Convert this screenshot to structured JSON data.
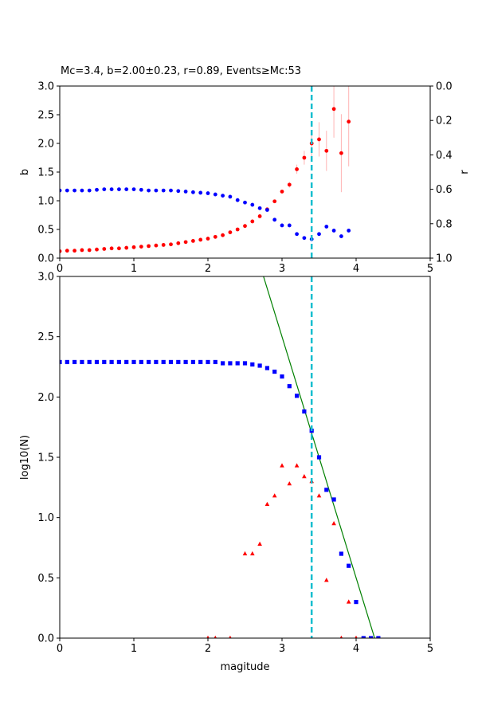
{
  "figure": {
    "title": "Mc=3.4, b=2.00±0.23, r=0.89, Events≥Mc:53",
    "mc_line_color": "#17becf"
  },
  "chart_data": [
    {
      "type": "scatter",
      "name": "top-panel",
      "x_ticks": [
        "0",
        "1",
        "2",
        "3",
        "4",
        "5"
      ],
      "xlim": [
        0,
        5
      ],
      "ylabel": "b",
      "ylim": [
        0,
        3
      ],
      "y_ticks": [
        "0.0",
        "0.5",
        "1.0",
        "1.5",
        "2.0",
        "2.5",
        "3.0"
      ],
      "y2label": "r",
      "y2lim": [
        1.0,
        0.0
      ],
      "y2_ticks": [
        "0.0",
        "0.2",
        "0.4",
        "0.6",
        "0.8",
        "1.0"
      ],
      "mc": 3.4,
      "series": [
        {
          "color": "#ff0000",
          "marker": "circle",
          "x": [
            0.0,
            0.1,
            0.2,
            0.3,
            0.4,
            0.5,
            0.6,
            0.7,
            0.8,
            0.9,
            1.0,
            1.1,
            1.2,
            1.3,
            1.4,
            1.5,
            1.6,
            1.7,
            1.8,
            1.9,
            2.0,
            2.1,
            2.2,
            2.3,
            2.4,
            2.5,
            2.6,
            2.7,
            2.8,
            2.9,
            3.0,
            3.1,
            3.2,
            3.3,
            3.4,
            3.5,
            3.6,
            3.7,
            3.8,
            3.9
          ],
          "y": [
            0.12,
            0.13,
            0.13,
            0.14,
            0.14,
            0.15,
            0.16,
            0.17,
            0.17,
            0.18,
            0.19,
            0.2,
            0.21,
            0.22,
            0.23,
            0.24,
            0.26,
            0.28,
            0.3,
            0.32,
            0.34,
            0.37,
            0.4,
            0.45,
            0.5,
            0.56,
            0.64,
            0.73,
            0.85,
            0.99,
            1.16,
            1.28,
            1.55,
            1.75,
            2.0,
            2.07,
            1.87,
            2.6,
            1.83,
            2.38
          ],
          "err": [
            0,
            0,
            0,
            0,
            0,
            0,
            0,
            0,
            0,
            0,
            0,
            0,
            0,
            0,
            0,
            0,
            0,
            0,
            0,
            0,
            0,
            0,
            0,
            0,
            0,
            0,
            0,
            0,
            0,
            0.02,
            0.03,
            0.05,
            0.08,
            0.12,
            0.23,
            0.3,
            0.35,
            0.5,
            0.68,
            0.78
          ]
        },
        {
          "color": "#0000ff",
          "marker": "circle",
          "axis": "r",
          "x": [
            0.0,
            0.1,
            0.2,
            0.3,
            0.4,
            0.5,
            0.6,
            0.7,
            0.8,
            0.9,
            1.0,
            1.1,
            1.2,
            1.3,
            1.4,
            1.5,
            1.6,
            1.7,
            1.8,
            1.9,
            2.0,
            2.1,
            2.2,
            2.3,
            2.4,
            2.5,
            2.6,
            2.7,
            2.8,
            2.9,
            3.0,
            3.1,
            3.2,
            3.3,
            3.4,
            3.5,
            3.6,
            3.7,
            3.8,
            3.9
          ],
          "y": [
            0.607,
            0.607,
            0.607,
            0.607,
            0.607,
            0.603,
            0.6,
            0.6,
            0.6,
            0.6,
            0.6,
            0.603,
            0.607,
            0.607,
            0.607,
            0.607,
            0.61,
            0.613,
            0.617,
            0.62,
            0.623,
            0.63,
            0.637,
            0.643,
            0.663,
            0.677,
            0.69,
            0.71,
            0.72,
            0.777,
            0.81,
            0.81,
            0.86,
            0.883,
            0.89,
            0.86,
            0.817,
            0.84,
            0.873,
            0.84
          ]
        }
      ]
    },
    {
      "type": "scatter",
      "name": "bottom-panel",
      "xlabel": "magitude",
      "x_ticks": [
        "0",
        "1",
        "2",
        "3",
        "4",
        "5"
      ],
      "xlim": [
        0,
        5
      ],
      "ylabel": "log10(N)",
      "ylim": [
        0,
        3
      ],
      "y_ticks": [
        "0.0",
        "0.5",
        "1.0",
        "1.5",
        "2.0",
        "2.5",
        "3.0"
      ],
      "mc": 3.4,
      "fit_line": {
        "color": "#008000",
        "x": [
          2.75,
          4.25
        ],
        "y": [
          3.0,
          0.0
        ]
      },
      "series": [
        {
          "color": "#0000ff",
          "marker": "square",
          "x": [
            0.0,
            0.1,
            0.2,
            0.3,
            0.4,
            0.5,
            0.6,
            0.7,
            0.8,
            0.9,
            1.0,
            1.1,
            1.2,
            1.3,
            1.4,
            1.5,
            1.6,
            1.7,
            1.8,
            1.9,
            2.0,
            2.1,
            2.2,
            2.3,
            2.4,
            2.5,
            2.6,
            2.7,
            2.8,
            2.9,
            3.0,
            3.1,
            3.2,
            3.3,
            3.4,
            3.5,
            3.6,
            3.7,
            3.8,
            3.9,
            4.0,
            4.1,
            4.2,
            4.3
          ],
          "y": [
            2.29,
            2.29,
            2.29,
            2.29,
            2.29,
            2.29,
            2.29,
            2.29,
            2.29,
            2.29,
            2.29,
            2.29,
            2.29,
            2.29,
            2.29,
            2.29,
            2.29,
            2.29,
            2.29,
            2.29,
            2.29,
            2.29,
            2.28,
            2.28,
            2.28,
            2.28,
            2.27,
            2.26,
            2.24,
            2.21,
            2.17,
            2.09,
            2.01,
            1.88,
            1.72,
            1.5,
            1.23,
            1.15,
            0.7,
            0.6,
            0.3,
            0.0,
            0.0,
            0.0
          ]
        },
        {
          "color": "#ff0000",
          "marker": "triangle",
          "x": [
            2.0,
            2.1,
            2.3,
            2.5,
            2.6,
            2.7,
            2.8,
            2.9,
            3.0,
            3.1,
            3.2,
            3.3,
            3.4,
            3.5,
            3.6,
            3.7,
            3.8,
            3.9,
            4.0
          ],
          "y": [
            0.0,
            0.0,
            0.0,
            0.7,
            0.7,
            0.78,
            1.11,
            1.18,
            1.43,
            1.28,
            1.43,
            1.34,
            1.3,
            1.18,
            0.48,
            0.95,
            0.0,
            0.3,
            0.0
          ]
        }
      ]
    }
  ]
}
